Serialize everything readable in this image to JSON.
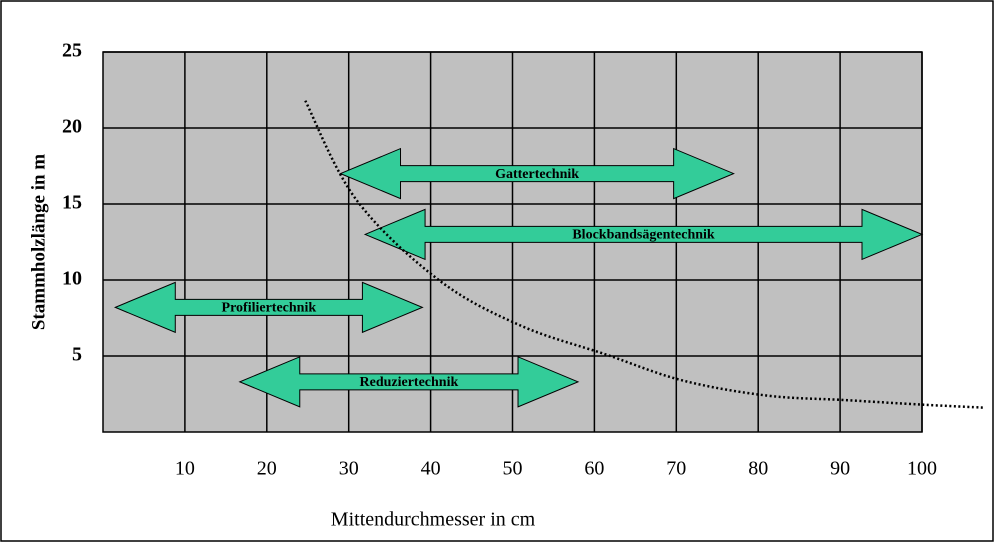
{
  "chart_data": {
    "type": "range",
    "ylabel": "Stammholzlänge in m",
    "xlabel": "Mittendurchmesser in cm",
    "xlim": [
      0,
      100
    ],
    "ylim": [
      0,
      25
    ],
    "xticks": [
      10,
      20,
      30,
      40,
      50,
      60,
      70,
      80,
      90,
      100
    ],
    "yticks": [
      5,
      10,
      15,
      20,
      25
    ],
    "grid": true,
    "plot_color": "#c0c0c0",
    "color": "#33cc99",
    "ranges": [
      {
        "label": "Gattertechnik",
        "start": 29,
        "end": 77,
        "y": 17
      },
      {
        "label": "Blockbandsägentechnik",
        "start": 32,
        "end": 100,
        "y": 13
      },
      {
        "label": "Profiliertechnik",
        "start": 1.5,
        "end": 39,
        "y": 8.2
      },
      {
        "label": "Reduziertechnik",
        "start": 16.7,
        "end": 58,
        "y": 3.3
      }
    ],
    "curve": {
      "x": [
        24.7,
        30.9,
        41,
        51,
        61.4,
        70.7,
        81,
        90.6,
        100,
        107.7
      ],
      "y": [
        21.8,
        15.3,
        10,
        7,
        5.1,
        3.4,
        2.4,
        2.1,
        1.8,
        1.6
      ]
    }
  }
}
